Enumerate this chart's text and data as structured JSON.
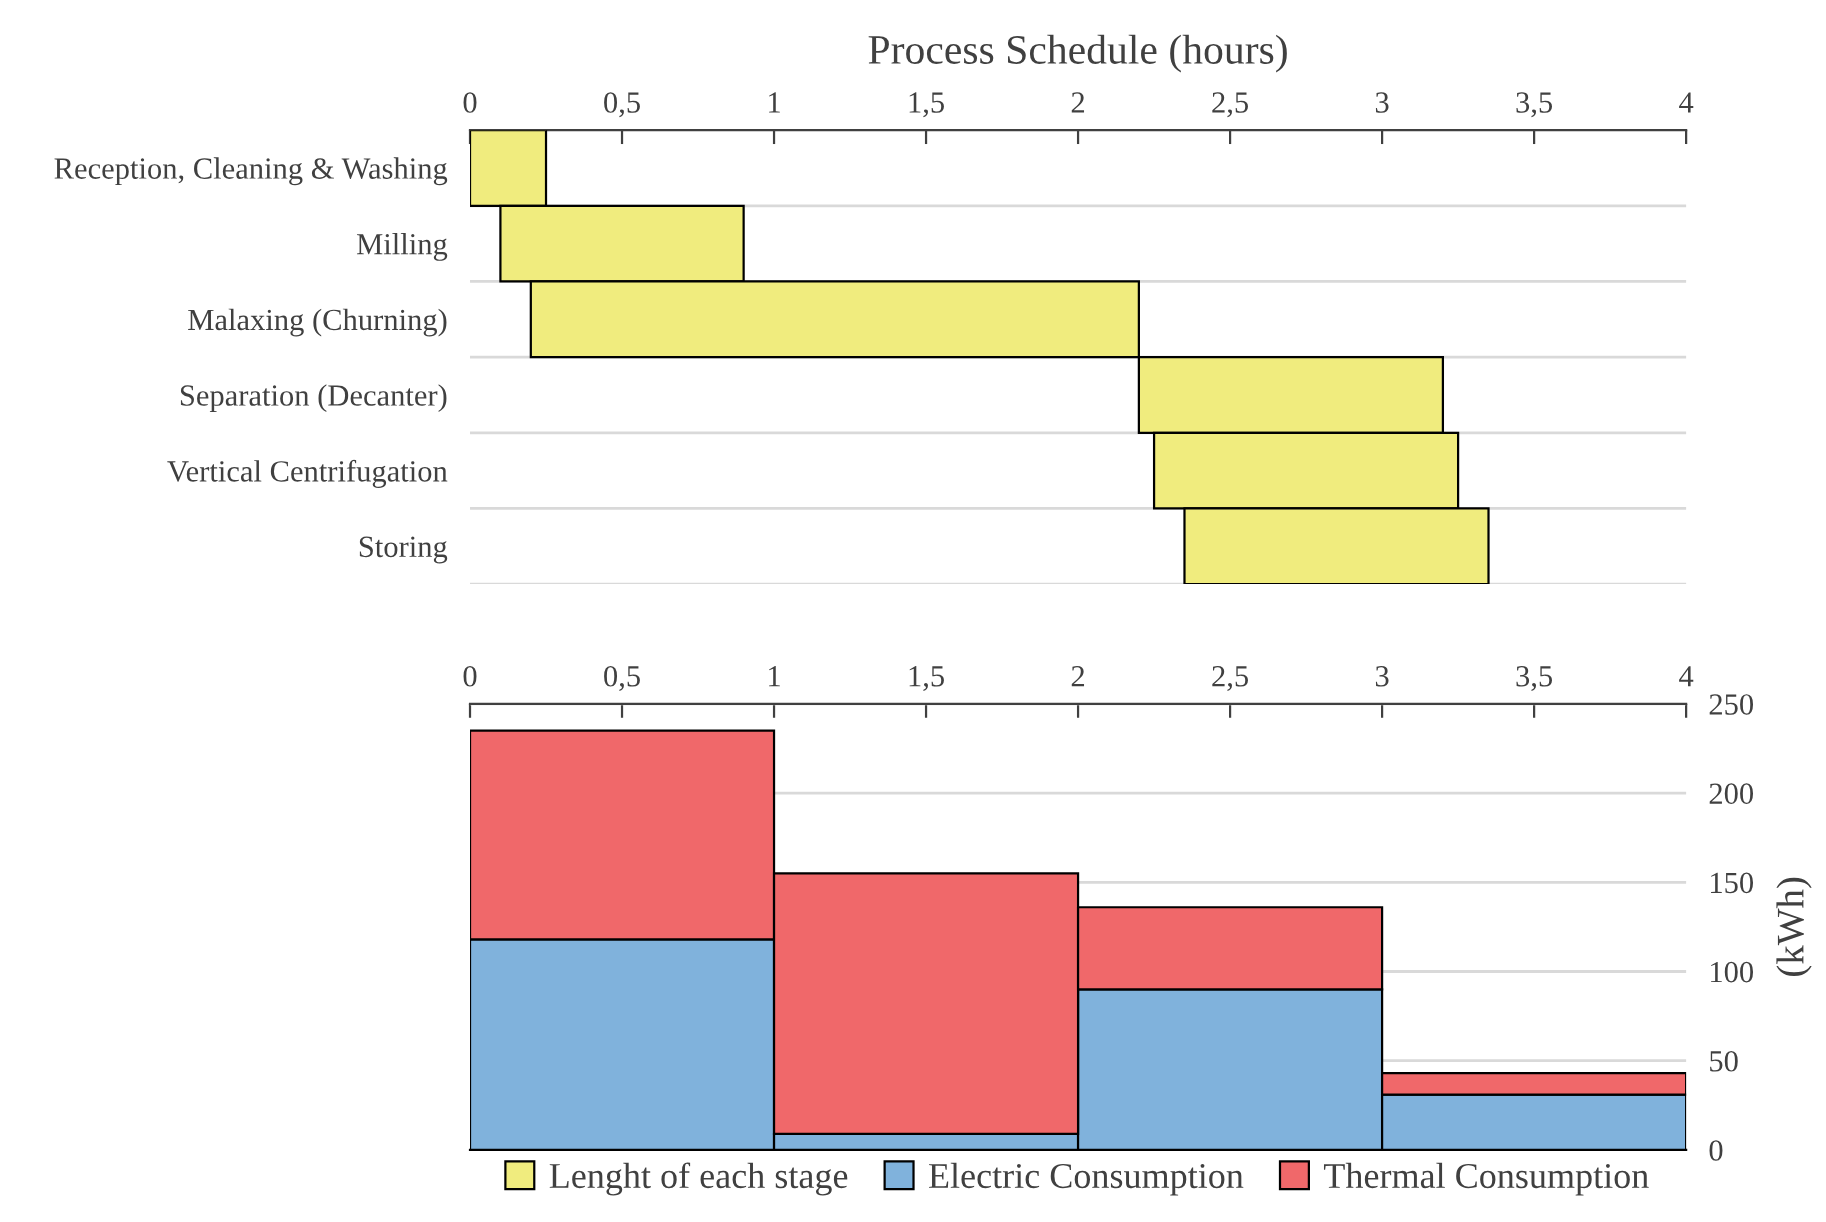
{
  "chart_data": [
    {
      "type": "bar",
      "orientation": "horizontal",
      "xlabel": "Process Schedule (hours)",
      "categories": [
        "Reception, Cleaning & Washing",
        "Milling",
        "Malaxing (Churning)",
        "Separation (Decanter)",
        "Vertical Centrifugation",
        "Storing"
      ],
      "series": [
        {
          "name": "Lenght of each stage",
          "color": "#f0ec7e",
          "base": [
            0,
            0.1,
            0.2,
            2.2,
            2.25,
            2.35
          ],
          "values": [
            0.25,
            0.8,
            2.0,
            1.0,
            1.0,
            1.0
          ]
        }
      ],
      "xlim": [
        0,
        4
      ],
      "xticks": [
        0,
        {
          "value": 0.5,
          "label": "0,5"
        },
        1,
        {
          "value": 1.5,
          "label": "1,5"
        },
        2,
        {
          "value": 2.5,
          "label": "2,5"
        },
        3,
        {
          "value": 3.5,
          "label": "3,5"
        },
        4
      ],
      "grid": "y",
      "legend": "bottom"
    },
    {
      "type": "bar",
      "stacked": true,
      "x": [
        0.5,
        1.5,
        2.5,
        3.5
      ],
      "series": [
        {
          "name": "Electric Consumption",
          "color": "#80b2dc",
          "values": [
            118,
            9,
            90,
            31
          ]
        },
        {
          "name": "Thermal Consumption",
          "color": "#f0686a",
          "values": [
            117,
            146,
            46,
            12
          ]
        }
      ],
      "xlim": [
        0,
        4
      ],
      "xticks": [
        0,
        {
          "value": 0.5,
          "label": "0,5"
        },
        1,
        {
          "value": 1.5,
          "label": "1,5"
        },
        2,
        {
          "value": 2.5,
          "label": "2,5"
        },
        3,
        {
          "value": 3.5,
          "label": "3,5"
        },
        4
      ],
      "ylim": [
        0,
        250
      ],
      "yticks": [
        0,
        50,
        100,
        150,
        200,
        250
      ],
      "ylabel": "(kWh)",
      "grid": "y",
      "legend": "bottom"
    }
  ]
}
